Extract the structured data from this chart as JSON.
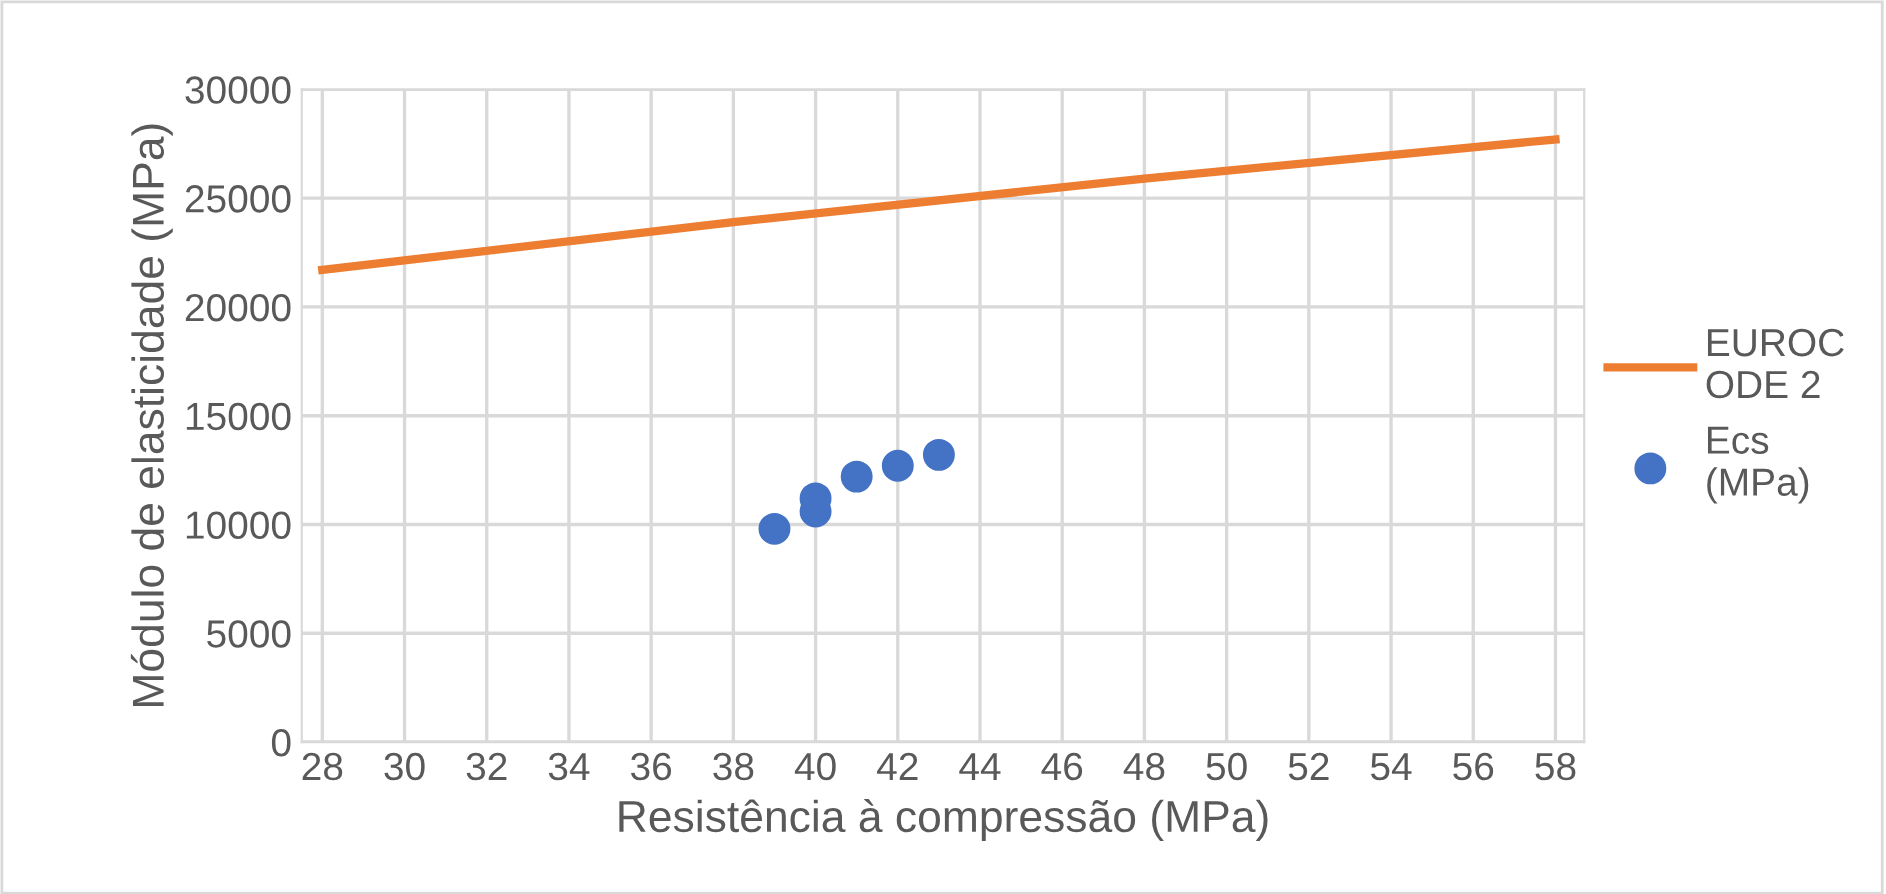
{
  "chart_data": {
    "type": "scatter",
    "xlabel": "Resistência à compressão (MPa)",
    "ylabel": "Módulo de elasticidade (MPa)",
    "xlim": [
      27.5,
      58.7
    ],
    "xticks": [
      28,
      30,
      32,
      34,
      36,
      38,
      40,
      42,
      44,
      46,
      48,
      50,
      52,
      54,
      56,
      58
    ],
    "ylim": [
      0,
      30000
    ],
    "yticks": [
      0,
      5000,
      10000,
      15000,
      20000,
      25000,
      30000
    ],
    "grid": true,
    "legend": "right",
    "series": [
      {
        "name": "EUROCODE 2",
        "type": "line",
        "color": "#ed7d31",
        "marker": "none",
        "line_style": "solid",
        "x": [
          28,
          38,
          48,
          58
        ],
        "values": [
          21700,
          23900,
          25900,
          27700
        ]
      },
      {
        "name": "Ecs (MPa)",
        "color": "#4472c4",
        "marker": "circle",
        "x": [
          39,
          40,
          40,
          41,
          42,
          43
        ],
        "values": [
          9800,
          10600,
          11200,
          12200,
          12700,
          13200
        ]
      }
    ]
  }
}
